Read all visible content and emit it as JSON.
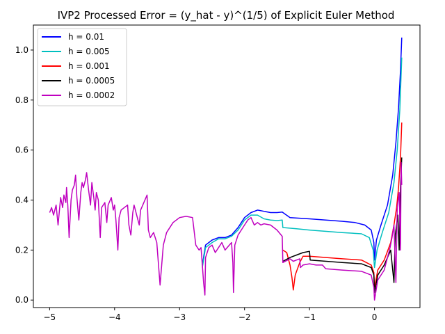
{
  "chart_data": {
    "type": "line",
    "title": "IVP2 Processed Error = (y_hat - y)^(1/5) of Explicit Euler Method",
    "xlabel": "",
    "ylabel": "",
    "xlim": [
      -5.25,
      0.7
    ],
    "ylim": [
      -0.03,
      1.1
    ],
    "xticks": [
      -5,
      -4,
      -3,
      -2,
      -1,
      0
    ],
    "xtick_labels": [
      "−5",
      "−4",
      "−3",
      "−2",
      "−1",
      "0"
    ],
    "yticks": [
      0.0,
      0.2,
      0.4,
      0.6,
      0.8,
      1.0
    ],
    "ytick_labels": [
      "0.0",
      "0.2",
      "0.4",
      "0.6",
      "0.8",
      "1.0"
    ],
    "grid": false,
    "legend_position": "upper-left",
    "series": [
      {
        "name": "h = 0.01",
        "color": "#0000ff",
        "points": [
          [
            -2.65,
            0.14
          ],
          [
            -2.6,
            0.22
          ],
          [
            -2.5,
            0.24
          ],
          [
            -2.4,
            0.25
          ],
          [
            -2.3,
            0.25
          ],
          [
            -2.2,
            0.26
          ],
          [
            -2.1,
            0.29
          ],
          [
            -2.0,
            0.33
          ],
          [
            -1.9,
            0.35
          ],
          [
            -1.8,
            0.36
          ],
          [
            -1.7,
            0.355
          ],
          [
            -1.6,
            0.35
          ],
          [
            -1.5,
            0.35
          ],
          [
            -1.42,
            0.352
          ],
          [
            -1.3,
            0.33
          ],
          [
            -1.0,
            0.325
          ],
          [
            -0.5,
            0.315
          ],
          [
            -0.3,
            0.31
          ],
          [
            -0.15,
            0.3
          ],
          [
            -0.05,
            0.28
          ],
          [
            -0.01,
            0.23
          ],
          [
            0.0,
            0.16
          ],
          [
            0.03,
            0.24
          ],
          [
            0.1,
            0.3
          ],
          [
            0.2,
            0.38
          ],
          [
            0.28,
            0.5
          ],
          [
            0.33,
            0.63
          ],
          [
            0.37,
            0.77
          ],
          [
            0.4,
            0.92
          ],
          [
            0.42,
            1.05
          ]
        ]
      },
      {
        "name": "h = 0.005",
        "color": "#00bfbf",
        "points": [
          [
            -2.65,
            0.13
          ],
          [
            -2.6,
            0.21
          ],
          [
            -2.5,
            0.23
          ],
          [
            -2.4,
            0.245
          ],
          [
            -2.3,
            0.245
          ],
          [
            -2.2,
            0.255
          ],
          [
            -2.1,
            0.28
          ],
          [
            -2.0,
            0.32
          ],
          [
            -1.9,
            0.34
          ],
          [
            -1.8,
            0.34
          ],
          [
            -1.7,
            0.325
          ],
          [
            -1.6,
            0.32
          ],
          [
            -1.5,
            0.318
          ],
          [
            -1.42,
            0.32
          ],
          [
            -1.41,
            0.29
          ],
          [
            -1.2,
            0.285
          ],
          [
            -1.0,
            0.28
          ],
          [
            -0.5,
            0.27
          ],
          [
            -0.2,
            0.265
          ],
          [
            -0.08,
            0.25
          ],
          [
            -0.02,
            0.2
          ],
          [
            0.0,
            0.13
          ],
          [
            0.04,
            0.2
          ],
          [
            0.12,
            0.27
          ],
          [
            0.22,
            0.35
          ],
          [
            0.3,
            0.47
          ],
          [
            0.35,
            0.6
          ],
          [
            0.39,
            0.76
          ],
          [
            0.42,
            0.97
          ]
        ]
      },
      {
        "name": "h = 0.001",
        "color": "#ff0000",
        "points": [
          [
            -1.41,
            0.2
          ],
          [
            -1.35,
            0.19
          ],
          [
            -1.3,
            0.14
          ],
          [
            -1.27,
            0.09
          ],
          [
            -1.25,
            0.04
          ],
          [
            -1.22,
            0.1
          ],
          [
            -1.15,
            0.15
          ],
          [
            -1.1,
            0.175
          ],
          [
            -1.0,
            0.175
          ],
          [
            -0.5,
            0.165
          ],
          [
            -0.2,
            0.16
          ],
          [
            -0.05,
            0.14
          ],
          [
            -0.01,
            0.11
          ],
          [
            0.0,
            0.05
          ],
          [
            0.05,
            0.12
          ],
          [
            0.15,
            0.16
          ],
          [
            0.25,
            0.23
          ],
          [
            0.3,
            0.3
          ],
          [
            0.34,
            0.37
          ],
          [
            0.37,
            0.45
          ],
          [
            0.4,
            0.57
          ],
          [
            0.42,
            0.71
          ]
        ]
      },
      {
        "name": "h = 0.0005",
        "color": "#000000",
        "points": [
          [
            -1.41,
            0.155
          ],
          [
            -1.3,
            0.17
          ],
          [
            -1.2,
            0.18
          ],
          [
            -1.1,
            0.19
          ],
          [
            -1.0,
            0.195
          ],
          [
            -0.99,
            0.16
          ],
          [
            -0.5,
            0.15
          ],
          [
            -0.2,
            0.145
          ],
          [
            -0.05,
            0.13
          ],
          [
            -0.01,
            0.1
          ],
          [
            0.0,
            0.03
          ],
          [
            0.05,
            0.1
          ],
          [
            0.15,
            0.14
          ],
          [
            0.25,
            0.2
          ],
          [
            0.3,
            0.07
          ],
          [
            0.32,
            0.26
          ],
          [
            0.36,
            0.34
          ],
          [
            0.38,
            0.2
          ],
          [
            0.4,
            0.45
          ],
          [
            0.42,
            0.57
          ]
        ]
      },
      {
        "name": "h = 0.0002",
        "color": "#bf00bf",
        "points": [
          [
            -5.0,
            0.35
          ],
          [
            -4.97,
            0.37
          ],
          [
            -4.94,
            0.34
          ],
          [
            -4.9,
            0.38
          ],
          [
            -4.87,
            0.3
          ],
          [
            -4.83,
            0.41
          ],
          [
            -4.8,
            0.37
          ],
          [
            -4.78,
            0.42
          ],
          [
            -4.75,
            0.39
          ],
          [
            -4.74,
            0.45
          ],
          [
            -4.72,
            0.38
          ],
          [
            -4.7,
            0.25
          ],
          [
            -4.67,
            0.4
          ],
          [
            -4.65,
            0.44
          ],
          [
            -4.62,
            0.46
          ],
          [
            -4.6,
            0.5
          ],
          [
            -4.58,
            0.41
          ],
          [
            -4.55,
            0.32
          ],
          [
            -4.52,
            0.43
          ],
          [
            -4.5,
            0.47
          ],
          [
            -4.48,
            0.45
          ],
          [
            -4.45,
            0.48
          ],
          [
            -4.43,
            0.51
          ],
          [
            -4.4,
            0.44
          ],
          [
            -4.37,
            0.38
          ],
          [
            -4.35,
            0.47
          ],
          [
            -4.32,
            0.41
          ],
          [
            -4.3,
            0.36
          ],
          [
            -4.28,
            0.43
          ],
          [
            -4.25,
            0.4
          ],
          [
            -4.22,
            0.25
          ],
          [
            -4.2,
            0.37
          ],
          [
            -4.15,
            0.39
          ],
          [
            -4.12,
            0.31
          ],
          [
            -4.1,
            0.38
          ],
          [
            -4.05,
            0.41
          ],
          [
            -4.02,
            0.36
          ],
          [
            -4.0,
            0.38
          ],
          [
            -3.98,
            0.32
          ],
          [
            -3.95,
            0.2
          ],
          [
            -3.93,
            0.33
          ],
          [
            -3.9,
            0.36
          ],
          [
            -3.85,
            0.37
          ],
          [
            -3.8,
            0.38
          ],
          [
            -3.78,
            0.3
          ],
          [
            -3.75,
            0.26
          ],
          [
            -3.72,
            0.35
          ],
          [
            -3.7,
            0.38
          ],
          [
            -3.65,
            0.33
          ],
          [
            -3.62,
            0.3
          ],
          [
            -3.6,
            0.36
          ],
          [
            -3.55,
            0.39
          ],
          [
            -3.5,
            0.42
          ],
          [
            -3.48,
            0.28
          ],
          [
            -3.45,
            0.25
          ],
          [
            -3.4,
            0.27
          ],
          [
            -3.35,
            0.23
          ],
          [
            -3.3,
            0.06
          ],
          [
            -3.25,
            0.22
          ],
          [
            -3.2,
            0.27
          ],
          [
            -3.1,
            0.31
          ],
          [
            -3.0,
            0.33
          ],
          [
            -2.9,
            0.335
          ],
          [
            -2.8,
            0.33
          ],
          [
            -2.75,
            0.22
          ],
          [
            -2.7,
            0.2
          ],
          [
            -2.67,
            0.21
          ],
          [
            -2.65,
            0.14
          ],
          [
            -2.63,
            0.07
          ],
          [
            -2.61,
            0.02
          ],
          [
            -2.6,
            0.17
          ],
          [
            -2.55,
            0.21
          ],
          [
            -2.5,
            0.22
          ],
          [
            -2.45,
            0.19
          ],
          [
            -2.4,
            0.21
          ],
          [
            -2.35,
            0.23
          ],
          [
            -2.3,
            0.2
          ],
          [
            -2.25,
            0.215
          ],
          [
            -2.2,
            0.23
          ],
          [
            -2.18,
            0.15
          ],
          [
            -2.17,
            0.03
          ],
          [
            -2.15,
            0.22
          ],
          [
            -2.1,
            0.26
          ],
          [
            -2.05,
            0.28
          ],
          [
            -2.0,
            0.3
          ],
          [
            -1.95,
            0.32
          ],
          [
            -1.9,
            0.33
          ],
          [
            -1.85,
            0.3
          ],
          [
            -1.8,
            0.31
          ],
          [
            -1.75,
            0.3
          ],
          [
            -1.7,
            0.305
          ],
          [
            -1.6,
            0.3
          ],
          [
            -1.5,
            0.28
          ],
          [
            -1.42,
            0.255
          ],
          [
            -1.41,
            0.15
          ],
          [
            -1.3,
            0.165
          ],
          [
            -1.25,
            0.155
          ],
          [
            -1.2,
            0.16
          ],
          [
            -1.15,
            0.165
          ],
          [
            -1.14,
            0.13
          ],
          [
            -1.1,
            0.14
          ],
          [
            -1.0,
            0.145
          ],
          [
            -0.9,
            0.14
          ],
          [
            -0.8,
            0.14
          ],
          [
            -0.75,
            0.125
          ],
          [
            -0.5,
            0.12
          ],
          [
            -0.2,
            0.115
          ],
          [
            -0.05,
            0.1
          ],
          [
            -0.01,
            0.05
          ],
          [
            0.0,
            0.0
          ],
          [
            0.05,
            0.08
          ],
          [
            0.15,
            0.12
          ],
          [
            0.2,
            0.17
          ],
          [
            0.24,
            0.21
          ],
          [
            0.27,
            0.25
          ],
          [
            0.3,
            0.3
          ],
          [
            0.33,
            0.07
          ],
          [
            0.35,
            0.37
          ],
          [
            0.38,
            0.43
          ],
          [
            0.4,
            0.2
          ],
          [
            0.41,
            0.55
          ],
          [
            0.42,
            0.46
          ]
        ]
      }
    ]
  }
}
